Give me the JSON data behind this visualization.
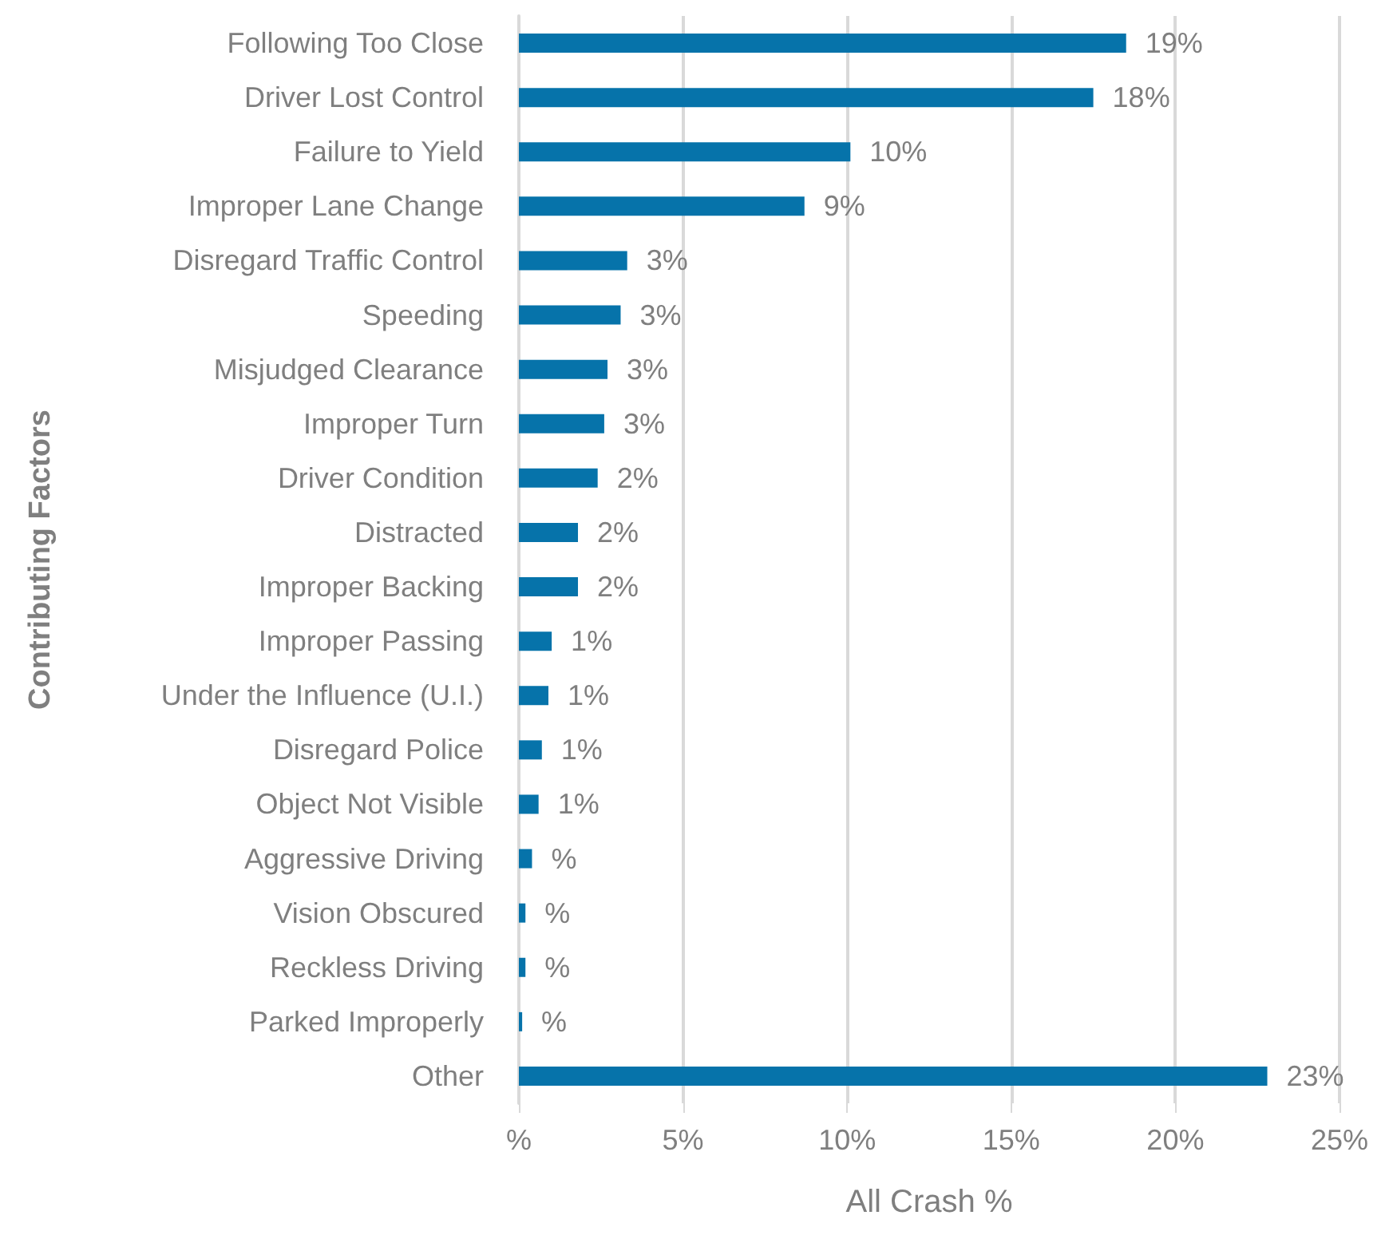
{
  "chart_data": {
    "type": "bar",
    "orientation": "horizontal",
    "xlabel": "All Crash %",
    "ylabel": "Contributing Factors",
    "categories": [
      "Following Too Close",
      "Driver Lost Control",
      "Failure to Yield",
      "Improper Lane Change",
      "Disregard Traffic Control",
      "Speeding",
      "Misjudged Clearance",
      "Improper Turn",
      "Driver Condition",
      "Distracted",
      "Improper Backing",
      "Improper Passing",
      "Under the Influence (U.I.)",
      "Disregard Police",
      "Object Not Visible",
      "Aggressive Driving",
      "Vision Obscured",
      "Reckless Driving",
      "Parked Improperly",
      "Other"
    ],
    "values": [
      18.5,
      17.5,
      10.1,
      8.7,
      3.3,
      3.1,
      2.7,
      2.6,
      2.4,
      1.8,
      1.8,
      1.0,
      0.9,
      0.7,
      0.6,
      0.4,
      0.2,
      0.2,
      0.1,
      22.8
    ],
    "value_labels": [
      "19%",
      "18%",
      "10%",
      "9%",
      "3%",
      "3%",
      "3%",
      "3%",
      "2%",
      "2%",
      "2%",
      "1%",
      "1%",
      "1%",
      "1%",
      "%",
      "%",
      "%",
      "%",
      "23%"
    ],
    "color": "#0673aa",
    "xlim": [
      0,
      25
    ],
    "xticks": [
      {
        "value": 0,
        "label": "%"
      },
      {
        "value": 5,
        "label": "5%"
      },
      {
        "value": 10,
        "label": "10%"
      },
      {
        "value": 15,
        "label": "15%"
      },
      {
        "value": 20,
        "label": "20%"
      },
      {
        "value": 25,
        "label": "25%"
      }
    ],
    "grid": "x"
  }
}
